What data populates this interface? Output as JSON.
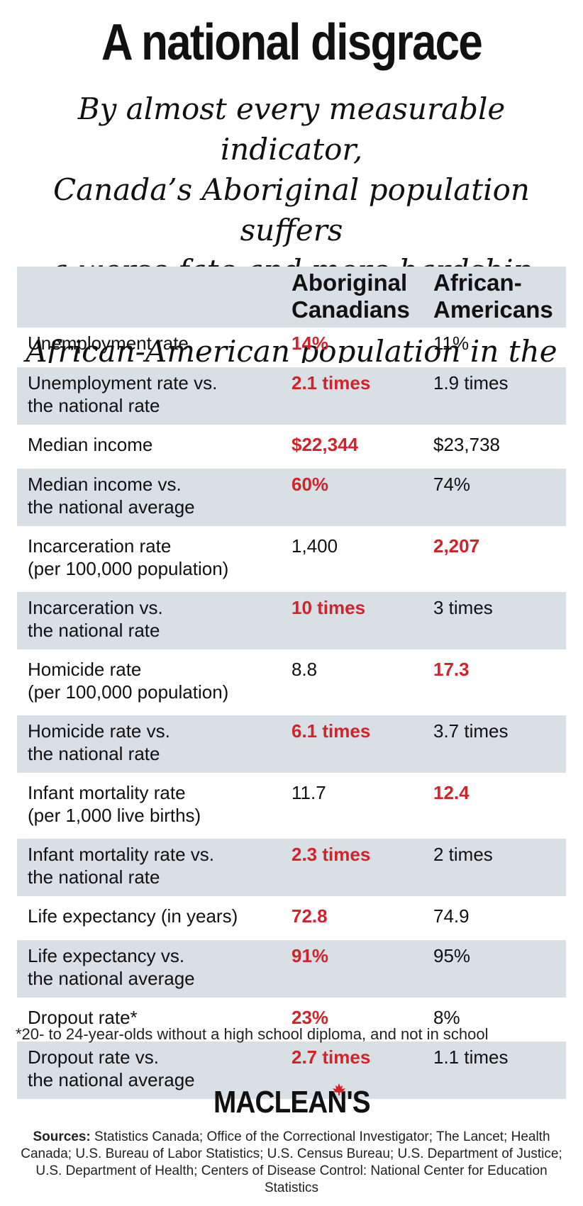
{
  "title": "A national disgrace",
  "subtitle_lines": [
    "By almost every measurable indicator,",
    "Canada’s Aboriginal population suffers",
    "a worse fate and more hardship than the",
    "African-American population in the U.S."
  ],
  "colors": {
    "highlight": "#d2232a",
    "shade": "#d8e0e5",
    "text": "#111111"
  },
  "chart_data": {
    "type": "table",
    "title": "A national disgrace",
    "columns": [
      {
        "line1": "Aboriginal",
        "line2": "Canadians"
      },
      {
        "line1": "African-",
        "line2": "Americans"
      }
    ],
    "rows": [
      {
        "label1": "Unemployment rate",
        "label2": "",
        "aboriginal": "14%",
        "african": "11%",
        "worse": "aboriginal"
      },
      {
        "label1": "Unemployment rate vs.",
        "label2": "the national rate",
        "aboriginal": "2.1 times",
        "african": "1.9 times",
        "worse": "aboriginal"
      },
      {
        "label1": "Median income",
        "label2": "",
        "aboriginal": "$22,344",
        "african": "$23,738",
        "worse": "aboriginal"
      },
      {
        "label1": "Median income vs.",
        "label2": "the national average",
        "aboriginal": "60%",
        "african": "74%",
        "worse": "aboriginal"
      },
      {
        "label1": "Incarceration rate",
        "label2": "(per 100,000 population)",
        "aboriginal": "1,400",
        "african": "2,207",
        "worse": "african"
      },
      {
        "label1": "Incarceration vs.",
        "label2": "the national rate",
        "aboriginal": "10 times",
        "african": "3 times",
        "worse": "aboriginal"
      },
      {
        "label1": "Homicide rate",
        "label2": "(per 100,000 population)",
        "aboriginal": "8.8",
        "african": "17.3",
        "worse": "african"
      },
      {
        "label1": "Homicide rate vs.",
        "label2": "the national rate",
        "aboriginal": "6.1 times",
        "african": "3.7 times",
        "worse": "aboriginal"
      },
      {
        "label1": "Infant mortality rate",
        "label2": "(per 1,000 live births)",
        "aboriginal": "11.7",
        "african": "12.4",
        "worse": "african"
      },
      {
        "label1": "Infant mortality rate vs.",
        "label2": "the national rate",
        "aboriginal": "2.3 times",
        "african": "2 times",
        "worse": "aboriginal"
      },
      {
        "label1": "Life expectancy (in years)",
        "label2": "",
        "aboriginal": "72.8",
        "african": "74.9",
        "worse": "aboriginal"
      },
      {
        "label1": "Life expectancy vs.",
        "label2": "the national average",
        "aboriginal": "91%",
        "african": "95%",
        "worse": "aboriginal"
      },
      {
        "label1": "Dropout rate*",
        "label2": "",
        "aboriginal": "23%",
        "african": "8%",
        "worse": "aboriginal"
      },
      {
        "label1": "Dropout rate vs.",
        "label2": "the national average",
        "aboriginal": "2.7 times",
        "african": "1.1 times",
        "worse": "aboriginal"
      }
    ]
  },
  "footnote": "*20- to 24-year-olds without a high school diploma, and not in school",
  "logo": "MACLEAN'S",
  "sources": {
    "label": "Sources:",
    "text": "Statistics Canada; Office of the Correctional Investigator; The Lancet; Health Canada; U.S. Bureau of Labor Statistics; U.S. Census Bureau; U.S. Department of Justice; U.S. Department of Health; Centers of Disease Control: National Center for Education Statistics"
  }
}
